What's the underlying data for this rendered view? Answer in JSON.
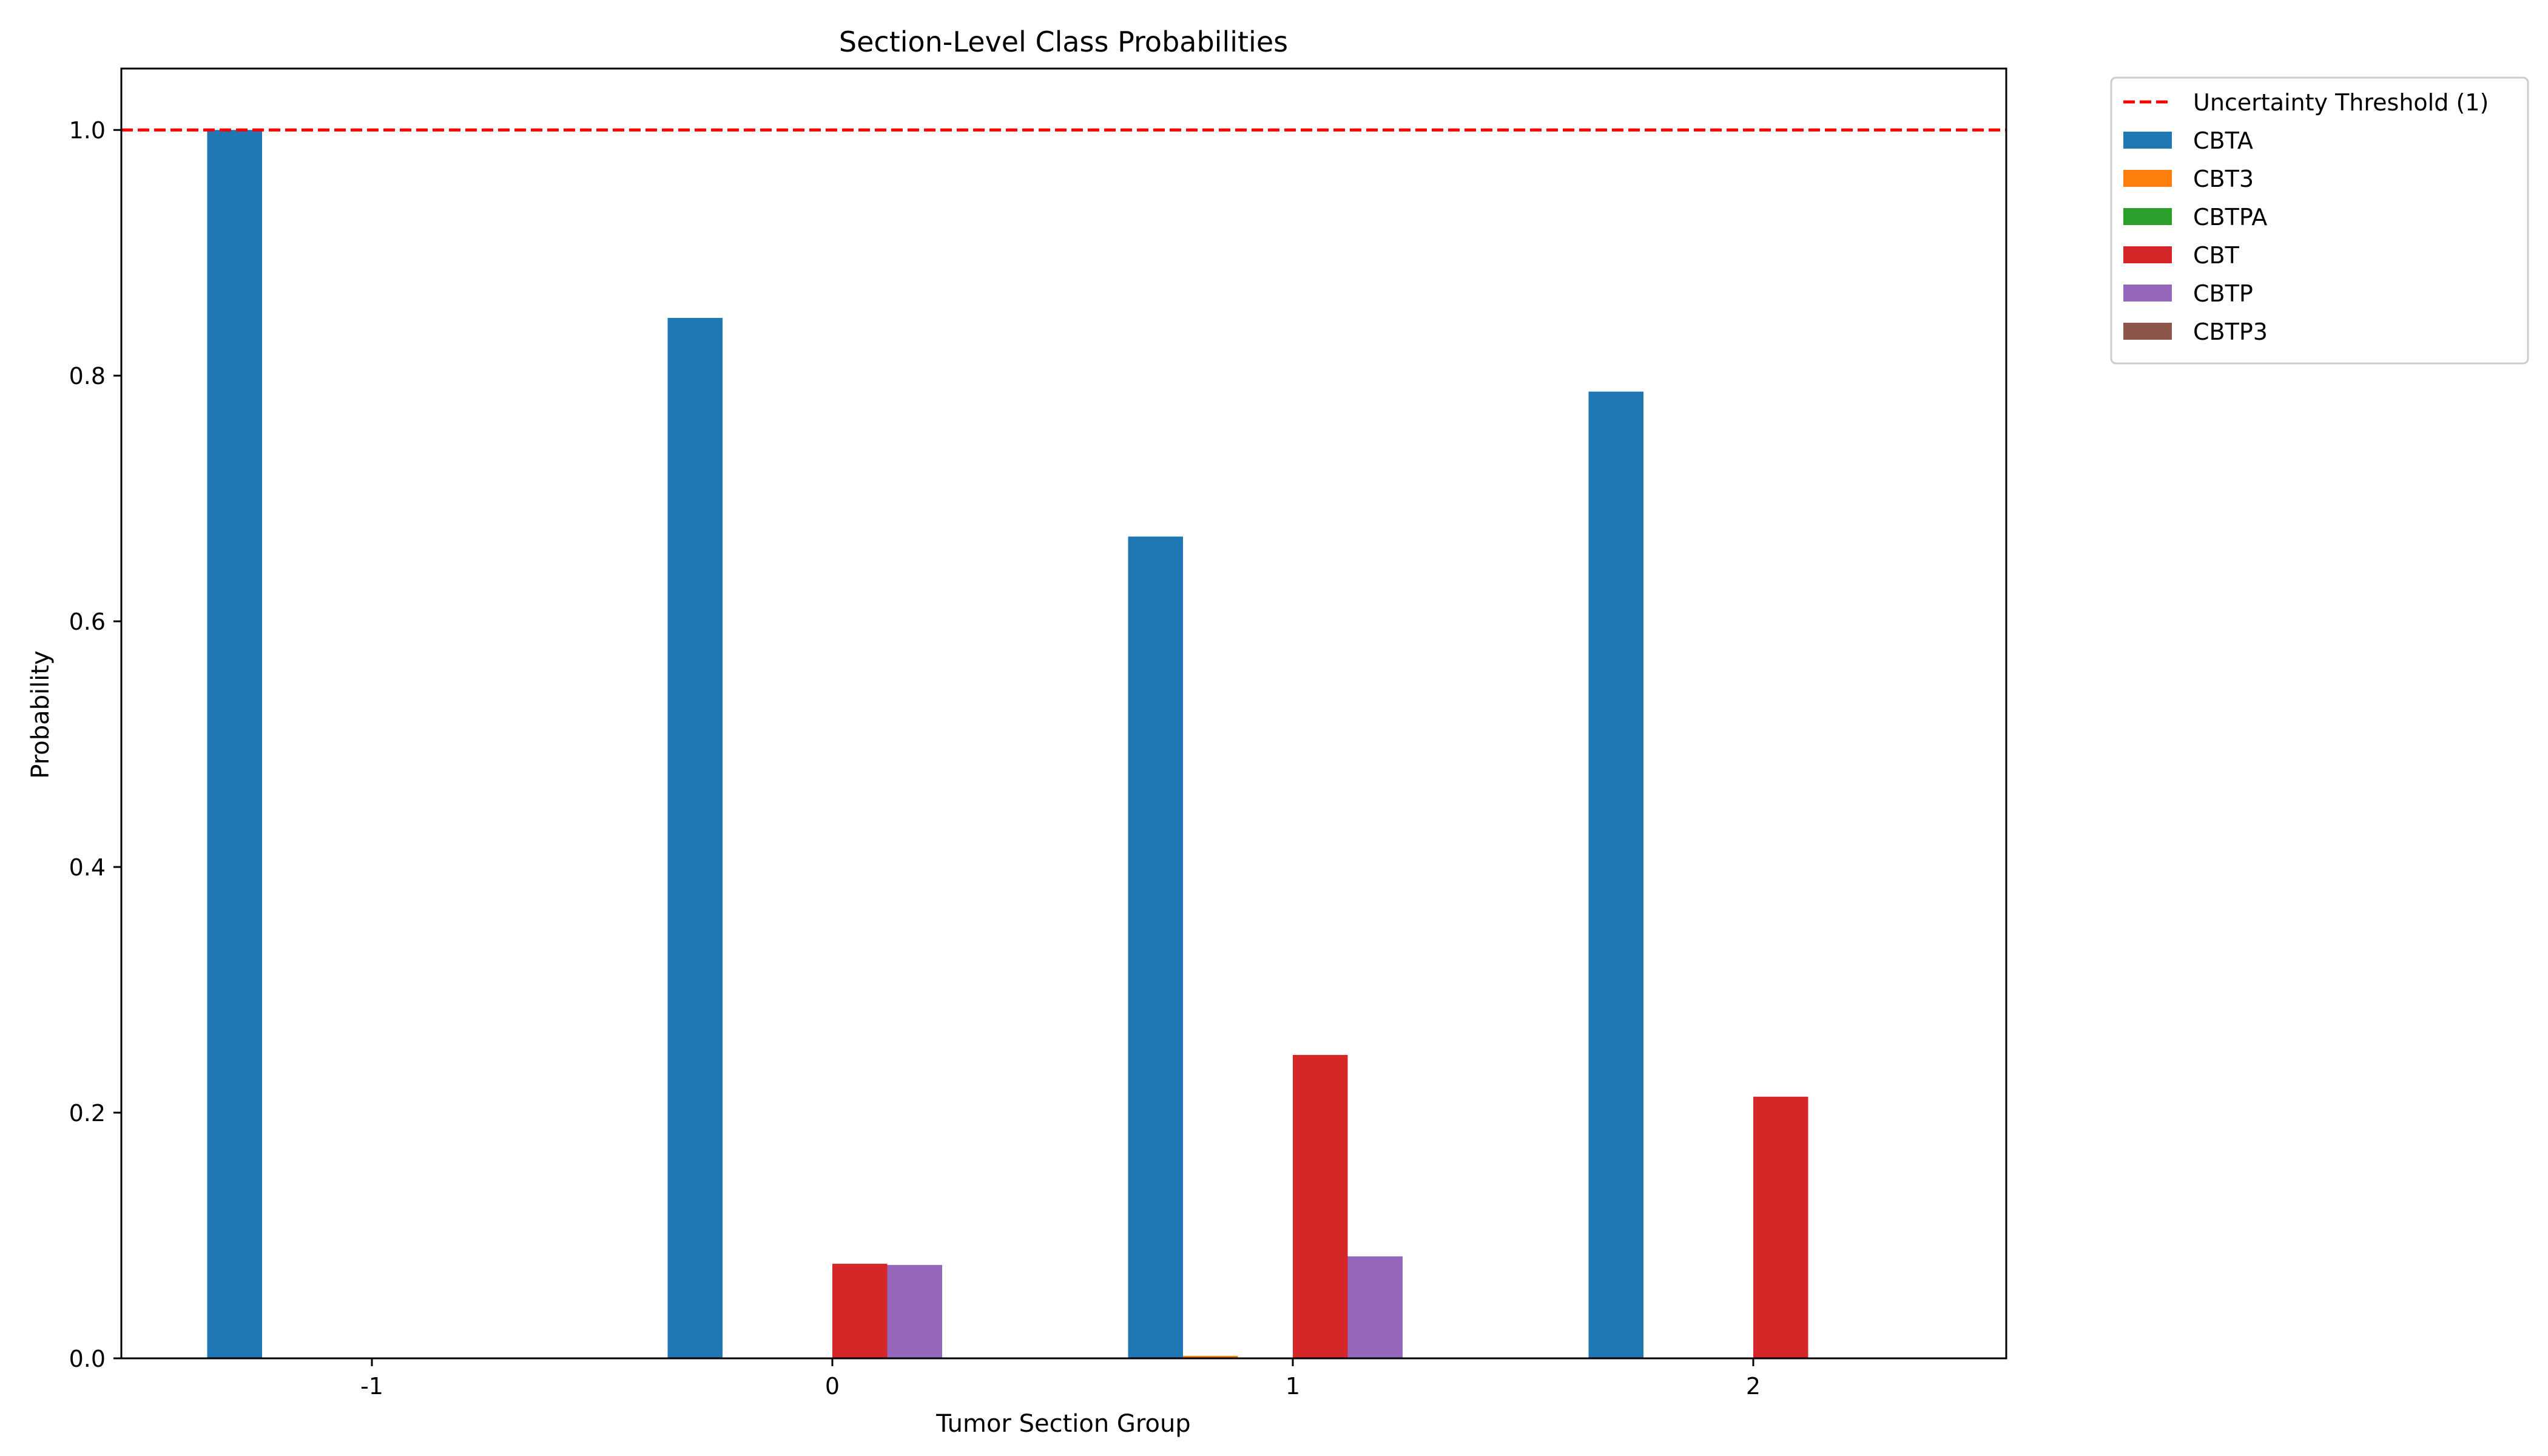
{
  "chart_data": {
    "type": "bar",
    "title": "Section-Level Class Probabilities",
    "xlabel": "Tumor Section Group",
    "ylabel": "Probability",
    "categories": [
      "-1",
      "0",
      "1",
      "2"
    ],
    "ylim": [
      0,
      1.05
    ],
    "yticks": [
      "0.0",
      "0.2",
      "0.4",
      "0.6",
      "0.8",
      "1.0"
    ],
    "grid": false,
    "legend_position": "outside top-right",
    "threshold": {
      "label": "Uncertainty Threshold (1)",
      "value": 1.0,
      "color": "#ff0000",
      "style": "dashed"
    },
    "series": [
      {
        "name": "CBTA",
        "color": "#1f77b4",
        "values": [
          1.0,
          0.847,
          0.669,
          0.787
        ]
      },
      {
        "name": "CBT3",
        "color": "#ff7f0e",
        "values": [
          0.0,
          0.0,
          0.002,
          0.0
        ]
      },
      {
        "name": "CBTPA",
        "color": "#2ca02c",
        "values": [
          0.0,
          0.0,
          0.0,
          0.0
        ]
      },
      {
        "name": "CBT",
        "color": "#d62728",
        "values": [
          0.0,
          0.077,
          0.247,
          0.213
        ]
      },
      {
        "name": "CBTP",
        "color": "#9467bd",
        "values": [
          0.0,
          0.076,
          0.083,
          0.0
        ]
      },
      {
        "name": "CBTP3",
        "color": "#8c564b",
        "values": [
          0.0,
          0.0,
          0.0,
          0.0
        ]
      }
    ]
  }
}
